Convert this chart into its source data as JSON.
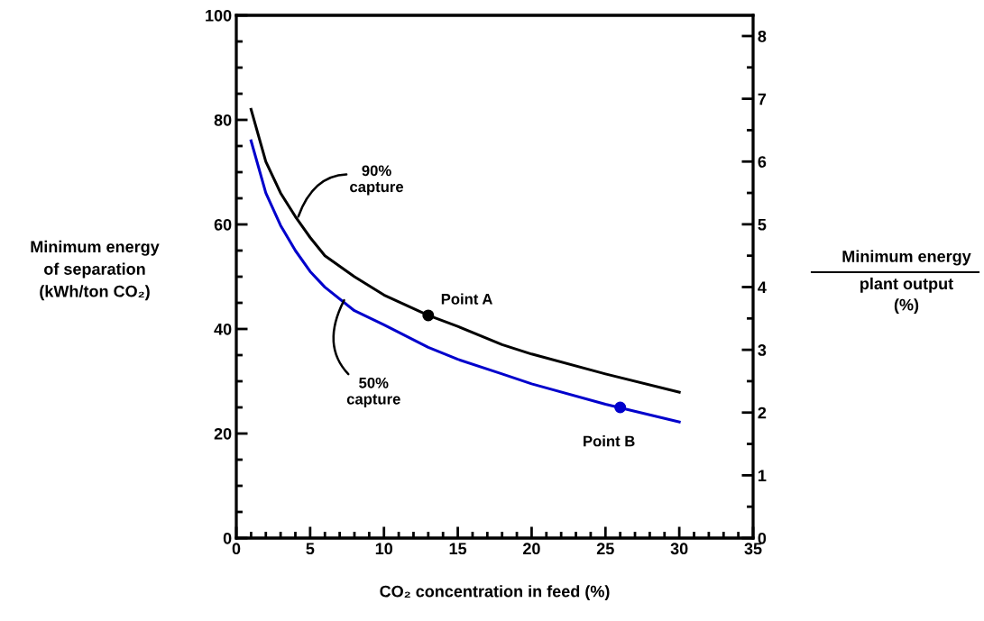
{
  "chart_data": {
    "type": "line",
    "xlabel": "CO₂ concentration in feed (%)",
    "ylabel": "Minimum energy\nof separation\n(kWh/ton CO₂)",
    "y2label": "Minimum energy\nplant output\n(%)",
    "xlim": [
      0,
      35
    ],
    "xticks": [
      0,
      5,
      10,
      15,
      20,
      25,
      30,
      35
    ],
    "ylim": [
      0,
      100
    ],
    "yticks": [
      0,
      20,
      40,
      60,
      80,
      100
    ],
    "y2lim": [
      0,
      8.33
    ],
    "y2ticks": [
      0,
      1,
      2,
      3,
      4,
      5,
      6,
      7,
      8
    ],
    "grid": false,
    "legend": false,
    "series": [
      {
        "marker": "none",
        "color": "#000000",
        "x": [
          1,
          2,
          3,
          4,
          5,
          6,
          8,
          10,
          13,
          15,
          18,
          20,
          25,
          30
        ],
        "values": [
          82,
          72,
          66,
          61.5,
          57.5,
          54,
          50,
          46.5,
          42.6,
          40.5,
          37,
          35.2,
          31.4,
          27.9
        ]
      },
      {
        "marker": "none",
        "color": "#0000cc",
        "x": [
          1,
          2,
          3,
          4,
          5,
          6,
          8,
          10,
          13,
          15,
          18,
          20,
          25,
          30
        ],
        "values": [
          76,
          66,
          59.8,
          55,
          51,
          48,
          43.5,
          40.8,
          36.5,
          34.2,
          31.4,
          29.5,
          25.6,
          22.2
        ]
      },
      {
        "type": "scatter",
        "marker": "circle",
        "name": "Point A",
        "color": "#000000",
        "x": [
          13
        ],
        "values": [
          42.6
        ]
      },
      {
        "type": "scatter",
        "marker": "circle",
        "name": "Point B",
        "color": "#0000cc",
        "x": [
          26
        ],
        "values": [
          25
        ]
      }
    ],
    "annotations": [
      {
        "text": "90%\ncapture",
        "x": 4.2,
        "y": 61.5
      },
      {
        "text": "50%\ncapture",
        "x": 7.3,
        "y": 45.5
      }
    ]
  }
}
